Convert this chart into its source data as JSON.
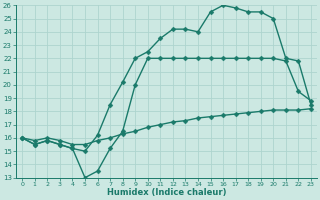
{
  "line1_x": [
    0,
    1,
    2,
    3,
    4,
    5,
    6,
    7,
    8,
    9,
    10,
    11,
    12,
    13,
    14,
    15,
    16,
    17,
    18,
    19,
    20,
    21,
    22,
    23
  ],
  "line1_y": [
    16.0,
    15.8,
    16.0,
    15.8,
    15.5,
    15.5,
    15.8,
    16.0,
    16.3,
    16.5,
    16.8,
    17.0,
    17.2,
    17.3,
    17.5,
    17.6,
    17.7,
    17.8,
    17.9,
    18.0,
    18.1,
    18.1,
    18.1,
    18.2
  ],
  "line2_x": [
    0,
    1,
    2,
    3,
    4,
    5,
    6,
    7,
    8,
    9,
    10,
    11,
    12,
    13,
    14,
    15,
    16,
    17,
    18,
    19,
    20,
    21,
    22,
    23
  ],
  "line2_y": [
    16.0,
    15.5,
    15.8,
    15.5,
    15.2,
    13.0,
    13.5,
    15.2,
    16.5,
    20.0,
    22.0,
    22.0,
    22.0,
    22.0,
    22.0,
    22.0,
    22.0,
    22.0,
    22.0,
    22.0,
    22.0,
    21.8,
    19.5,
    18.8
  ],
  "line3_x": [
    0,
    1,
    2,
    3,
    4,
    5,
    6,
    7,
    8,
    9,
    10,
    11,
    12,
    13,
    14,
    15,
    16,
    17,
    18,
    19,
    20,
    21,
    22,
    23
  ],
  "line3_y": [
    16.0,
    15.5,
    15.8,
    15.5,
    15.2,
    15.0,
    16.2,
    18.5,
    20.2,
    22.0,
    22.5,
    23.5,
    24.2,
    24.2,
    24.0,
    25.5,
    26.0,
    25.8,
    25.5,
    25.5,
    25.0,
    22.0,
    21.8,
    18.5
  ],
  "line_color": "#1a7a6a",
  "bg_color": "#cce8e2",
  "grid_color": "#aed4ce",
  "xlabel": "Humidex (Indice chaleur)",
  "ylim": [
    13,
    26
  ],
  "xlim": [
    -0.5,
    23.5
  ],
  "yticks": [
    13,
    14,
    15,
    16,
    17,
    18,
    19,
    20,
    21,
    22,
    23,
    24,
    25,
    26
  ],
  "xticks": [
    0,
    1,
    2,
    3,
    4,
    5,
    6,
    7,
    8,
    9,
    10,
    11,
    12,
    13,
    14,
    15,
    16,
    17,
    18,
    19,
    20,
    21,
    22,
    23
  ],
  "markersize": 2.5,
  "linewidth": 1.0
}
